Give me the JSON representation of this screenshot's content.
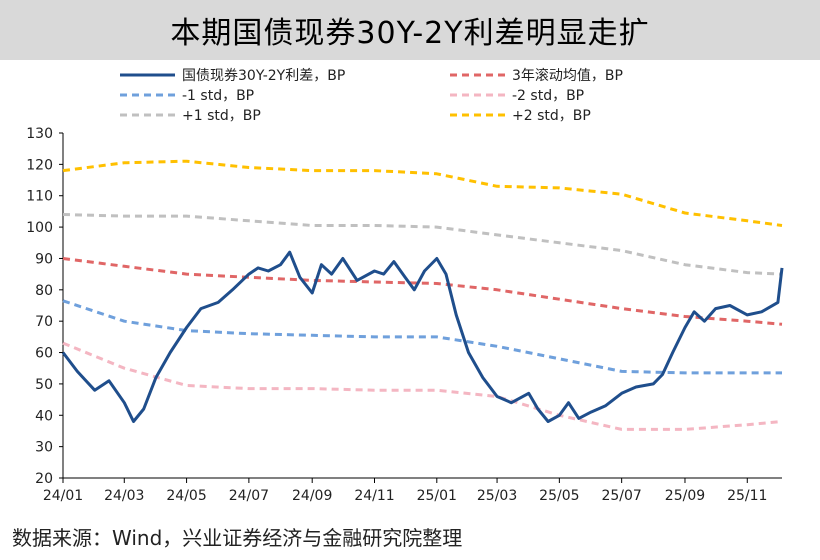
{
  "title": "本期国债现券30Y-2Y利差明显走扩",
  "source": "数据来源：Wind，兴业证券经济与金融研究院整理",
  "chart_data": {
    "type": "line",
    "title": "本期国债现券30Y-2Y利差明显走扩",
    "ylim": [
      20,
      130
    ],
    "yticks": [
      20,
      30,
      40,
      50,
      60,
      70,
      80,
      90,
      100,
      110,
      120,
      130
    ],
    "xlim": [
      "2024-01",
      "2025-12"
    ],
    "xticks": [
      "24/01",
      "24/03",
      "24/05",
      "24/07",
      "24/09",
      "24/11",
      "25/01",
      "25/03",
      "25/05",
      "25/07",
      "25/09",
      "25/11"
    ],
    "grid": false,
    "legend": "top",
    "series": [
      {
        "name": "国债现券30Y-2Y利差，BP",
        "style": "solid",
        "color": "#1f4e8c",
        "x": [
          "2024-01",
          "2024-01-15",
          "2024-02",
          "2024-02-15",
          "2024-03",
          "2024-03-10",
          "2024-03-20",
          "2024-04",
          "2024-04-15",
          "2024-05",
          "2024-05-15",
          "2024-06",
          "2024-06-15",
          "2024-07",
          "2024-07-10",
          "2024-07-20",
          "2024-08",
          "2024-08-10",
          "2024-08-20",
          "2024-09",
          "2024-09-10",
          "2024-09-20",
          "2024-10",
          "2024-10-15",
          "2024-11",
          "2024-11-10",
          "2024-11-20",
          "2024-12",
          "2024-12-10",
          "2024-12-20",
          "2025-01",
          "2025-01-10",
          "2025-01-20",
          "2025-02",
          "2025-02-15",
          "2025-03",
          "2025-03-15",
          "2025-04",
          "2025-04-10",
          "2025-04-20",
          "2025-05",
          "2025-05-10",
          "2025-05-20",
          "2025-06",
          "2025-06-15",
          "2025-07",
          "2025-07-15",
          "2025-08",
          "2025-08-10",
          "2025-08-20",
          "2025-09",
          "2025-09-10",
          "2025-09-20",
          "2025-10",
          "2025-10-15",
          "2025-11",
          "2025-11-15",
          "2025-12",
          "2025-12-05"
        ],
        "values": [
          60,
          54,
          48,
          51,
          44,
          38,
          42,
          52,
          60,
          68,
          74,
          76,
          80,
          85,
          87,
          86,
          88,
          92,
          84,
          79,
          88,
          85,
          90,
          83,
          86,
          85,
          89,
          84,
          80,
          86,
          90,
          85,
          72,
          60,
          52,
          46,
          44,
          47,
          42,
          38,
          40,
          44,
          39,
          41,
          43,
          47,
          49,
          50,
          53,
          60,
          68,
          73,
          70,
          74,
          75,
          72,
          73,
          76,
          87
        ]
      },
      {
        "name": "3年滚动均值，BP",
        "style": "dashed",
        "color": "#e06666",
        "x": [
          "2024-01",
          "2024-03",
          "2024-05",
          "2024-07",
          "2024-09",
          "2024-11",
          "2025-01",
          "2025-03",
          "2025-05",
          "2025-07",
          "2025-09",
          "2025-11",
          "2025-12-05"
        ],
        "values": [
          90,
          87.5,
          85,
          84,
          83,
          82.5,
          82,
          80,
          77,
          74,
          71.5,
          70,
          69
        ]
      },
      {
        "name": "-1 std，BP",
        "style": "dashed",
        "color": "#6fa0dc",
        "x": [
          "2024-01",
          "2024-03",
          "2024-05",
          "2024-07",
          "2024-09",
          "2024-11",
          "2025-01",
          "2025-03",
          "2025-05",
          "2025-07",
          "2025-09",
          "2025-11",
          "2025-12-05"
        ],
        "values": [
          76.5,
          70,
          67,
          66,
          65.5,
          65,
          65,
          62,
          58,
          54,
          53.5,
          53.5,
          53.5
        ]
      },
      {
        "name": "-2 std，BP",
        "style": "dashed",
        "color": "#f4b6c2",
        "x": [
          "2024-01",
          "2024-03",
          "2024-05",
          "2024-07",
          "2024-09",
          "2024-11",
          "2025-01",
          "2025-03",
          "2025-05",
          "2025-07",
          "2025-09",
          "2025-11",
          "2025-12-05"
        ],
        "values": [
          63,
          55,
          49.5,
          48.5,
          48.5,
          48,
          48,
          46,
          40,
          35.5,
          35.5,
          37,
          38
        ]
      },
      {
        "name": "+1 std，BP",
        "style": "dashed",
        "color": "#c0c0c0",
        "x": [
          "2024-01",
          "2024-03",
          "2024-05",
          "2024-07",
          "2024-09",
          "2024-11",
          "2025-01",
          "2025-03",
          "2025-05",
          "2025-07",
          "2025-09",
          "2025-11",
          "2025-12-05"
        ],
        "values": [
          104,
          103.5,
          103.5,
          102,
          100.5,
          100.5,
          100,
          97.5,
          95,
          92.5,
          88,
          85.5,
          85
        ]
      },
      {
        "name": "+2 std，BP",
        "style": "dashed",
        "color": "#ffc000",
        "x": [
          "2024-01",
          "2024-03",
          "2024-05",
          "2024-07",
          "2024-09",
          "2024-11",
          "2025-01",
          "2025-03",
          "2025-05",
          "2025-07",
          "2025-09",
          "2025-11",
          "2025-12-05"
        ],
        "values": [
          118,
          120.5,
          121,
          119,
          118,
          118,
          117,
          113,
          112.5,
          110.5,
          104.5,
          102,
          100.5
        ]
      }
    ]
  }
}
